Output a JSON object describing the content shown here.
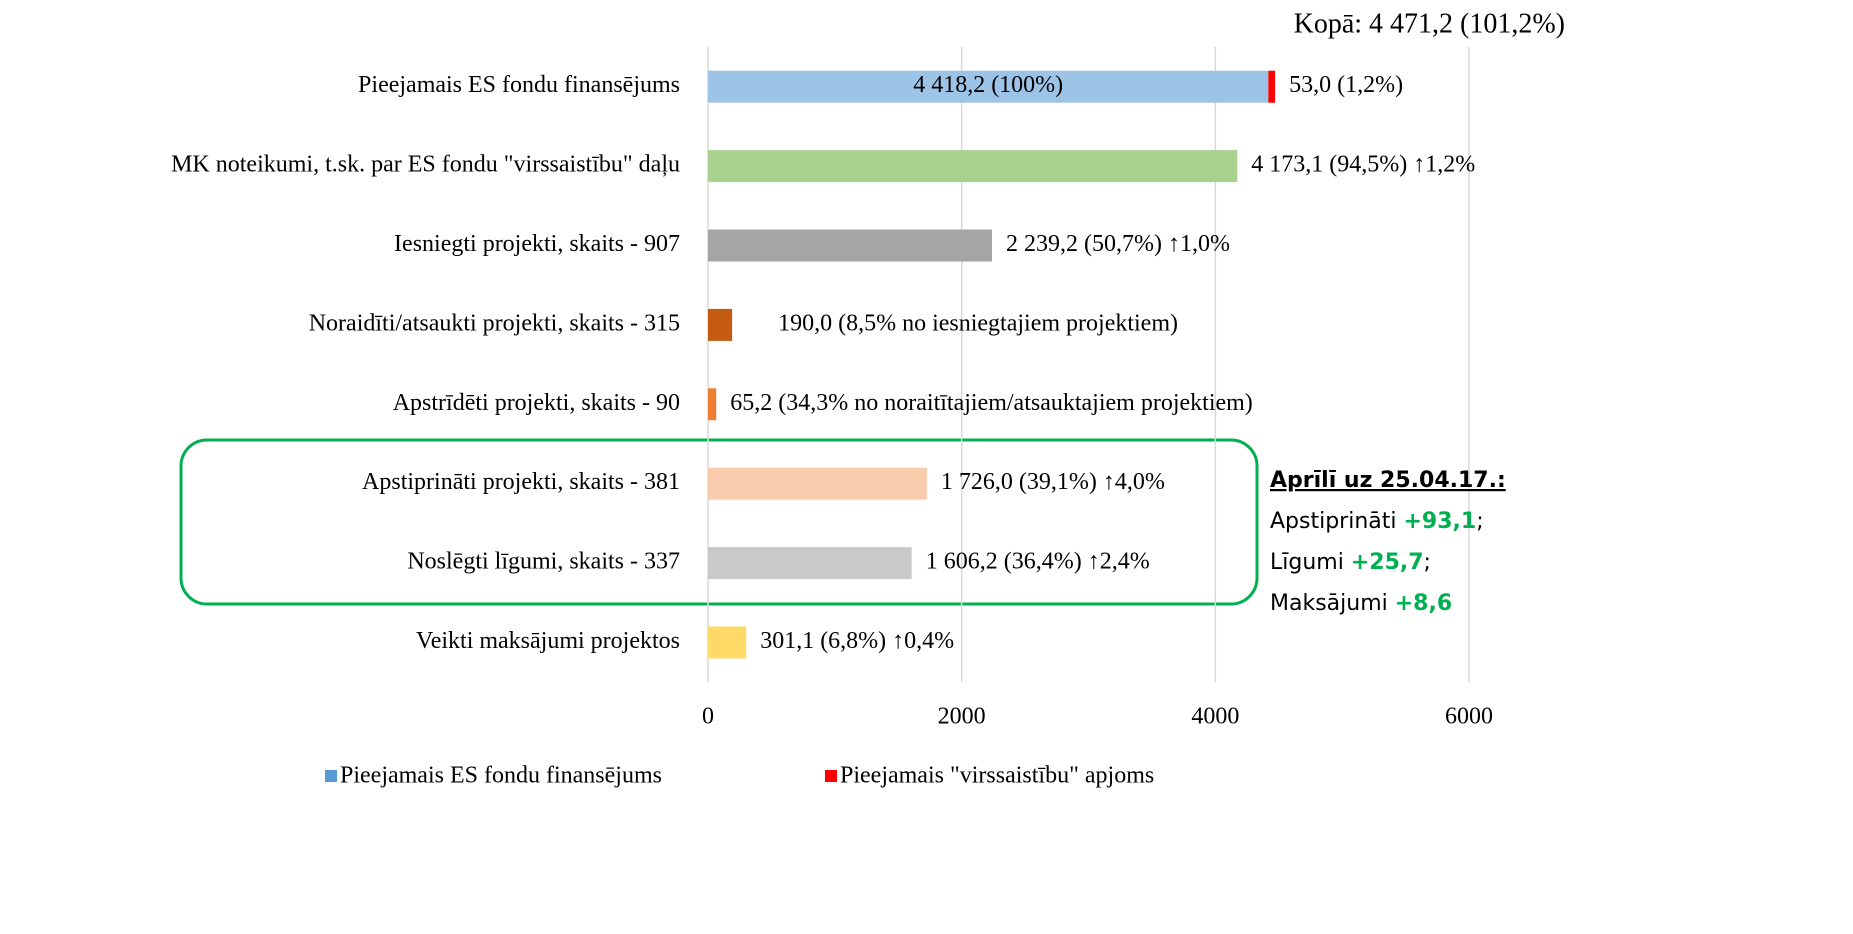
{
  "chart_data": {
    "type": "hbar",
    "annotations": {
      "total": "Kopā: 4 471,2 (101,2%)",
      "box_title": "Aprīlī uz 25.04.17.:",
      "box_lines": [
        {
          "label": "Apstiprināti",
          "value": "+93,1",
          "end": ";"
        },
        {
          "label": "Līgumi",
          "value": "+25,7",
          "end": ";"
        },
        {
          "label": "Maksājumi",
          "value": "+8,6"
        }
      ],
      "highlight_color": "#00b050"
    },
    "categories": [
      "Pieejamais ES fondu finansējums",
      "MK noteikumi, t.sk. par ES fondu \"virssaistību\" daļu",
      "Iesniegti projekti, skaits - 907",
      "Noraidīti/atsaukti projekti, skaits - 315",
      "Apstrīdēti projekti, skaits - 90",
      "Apstiprināti projekti, skaits - 381",
      "Noslēgti līgumi, skaits - 337",
      "Veikti maksājumi projektos"
    ],
    "series": [
      {
        "name": "Pieejamais ES fondu finansējums",
        "color": "#5b9bd5",
        "bar_colors": [
          "#9dc3e6",
          "#a9d18e",
          "#a5a5a5",
          "#c55a11",
          "#ed7d31",
          "#f8cbad",
          "#c9c9c9",
          "#ffd966"
        ],
        "values": [
          4418.2,
          4173.1,
          2239.2,
          190.0,
          65.2,
          1726.0,
          1606.2,
          301.1
        ],
        "value_labels": [
          "4 418,2 (100%)",
          "4 173,1 (94,5%) ↑1,2%",
          "2 239,2 (50,7%) ↑1,0%",
          "190,0 (8,5% no iesniegtajiem projektiem)",
          "65,2 (34,3% no noraitītajiem/atsauktajiem projektiem)",
          "1 726,0 (39,1%) ↑4,0%",
          "1 606,2 (36,4%) ↑2,4%",
          "301,1 (6,8%) ↑0,4%"
        ]
      },
      {
        "name": "Pieejamais \"virssaistību\" apjoms",
        "color": "#ff0000",
        "values": [
          53.0,
          null,
          null,
          null,
          null,
          null,
          null,
          null
        ],
        "value_labels": [
          "53,0 (1,2%)",
          null,
          null,
          null,
          null,
          null,
          null,
          null
        ]
      }
    ],
    "xlim": [
      0,
      6000
    ],
    "xticks": [
      0,
      2000,
      4000,
      6000
    ],
    "grid": true,
    "legend": "bottom"
  }
}
